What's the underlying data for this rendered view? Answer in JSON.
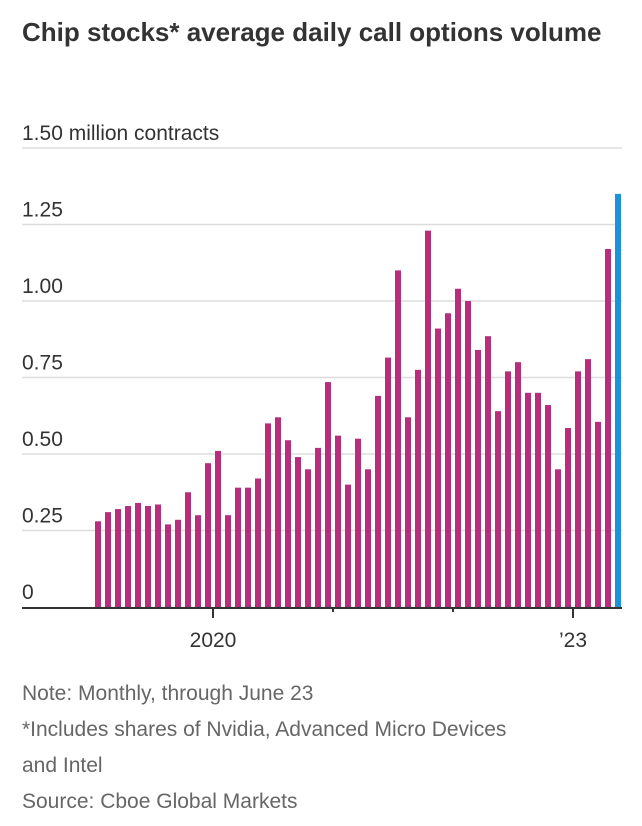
{
  "chart_data": {
    "type": "bar",
    "title": "Chip stocks* average daily call options volume",
    "ylabel": "million contracts",
    "ylim": [
      0,
      1.5
    ],
    "yticks": [
      {
        "value": 0,
        "label": "0"
      },
      {
        "value": 0.25,
        "label": "0.25"
      },
      {
        "value": 0.5,
        "label": "0.50"
      },
      {
        "value": 0.75,
        "label": "0.75"
      },
      {
        "value": 1.0,
        "label": "1.00"
      },
      {
        "value": 1.25,
        "label": "1.25"
      },
      {
        "value": 1.5,
        "label": "1.50 million contracts"
      }
    ],
    "xticks": [
      {
        "index": 11,
        "label": "2020"
      },
      {
        "index": 23,
        "label": ""
      },
      {
        "index": 35,
        "label": ""
      },
      {
        "index": 47,
        "label": "’23"
      }
    ],
    "start_month": "2019-02",
    "grid": true,
    "colors": {
      "default": "#b72f7a",
      "highlight": "#1c93d8"
    },
    "highlight_last": true,
    "values": [
      0.28,
      0.31,
      0.32,
      0.33,
      0.34,
      0.33,
      0.335,
      0.27,
      0.285,
      0.375,
      0.3,
      0.47,
      0.51,
      0.3,
      0.39,
      0.39,
      0.42,
      0.6,
      0.62,
      0.545,
      0.49,
      0.45,
      0.52,
      0.735,
      0.56,
      0.4,
      0.55,
      0.45,
      0.69,
      0.815,
      1.1,
      0.62,
      0.775,
      1.23,
      0.91,
      0.96,
      1.04,
      1.0,
      0.84,
      0.885,
      0.64,
      0.77,
      0.8,
      0.7,
      0.7,
      0.66,
      0.45,
      0.585,
      0.77,
      0.81,
      0.605,
      1.17,
      1.35
    ]
  },
  "notes": {
    "note": "Note: Monthly, through June 23",
    "footnote_line1": "*Includes shares of Nvidia, Advanced Micro Devices",
    "footnote_line2": "and Intel",
    "source": "Source: Cboe Global Markets"
  }
}
